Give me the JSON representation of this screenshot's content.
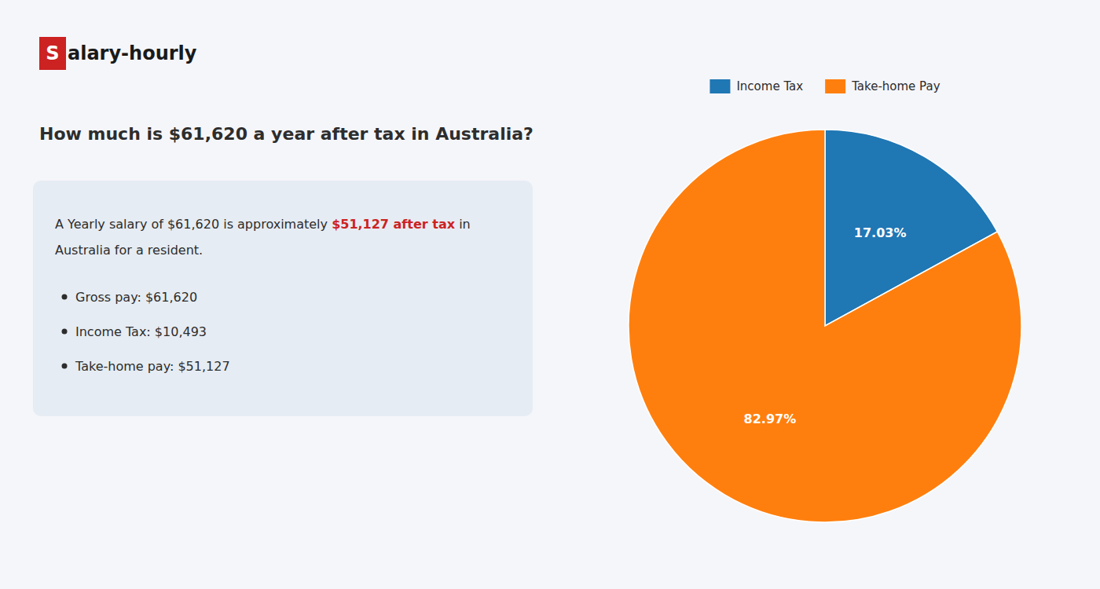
{
  "chart_data": {
    "type": "pie",
    "title": "How much is $61,620 a year after tax in Australia?",
    "annotations": [
      "S",
      "alary-hourly",
      "A Yearly salary of $61,620 is approximately ",
      "$51,127 after tax",
      " in",
      "Australia for a resident.",
      "Gross pay: $61,620",
      "Income Tax: $10,493",
      "Take-home pay: $51,127"
    ],
    "categories": [
      "Income Tax",
      "Take-home Pay"
    ],
    "values": [
      17.03,
      82.97
    ],
    "value_labels": [
      "17.03%",
      "82.97%"
    ],
    "data_labels": true,
    "legend": "top"
  }
}
